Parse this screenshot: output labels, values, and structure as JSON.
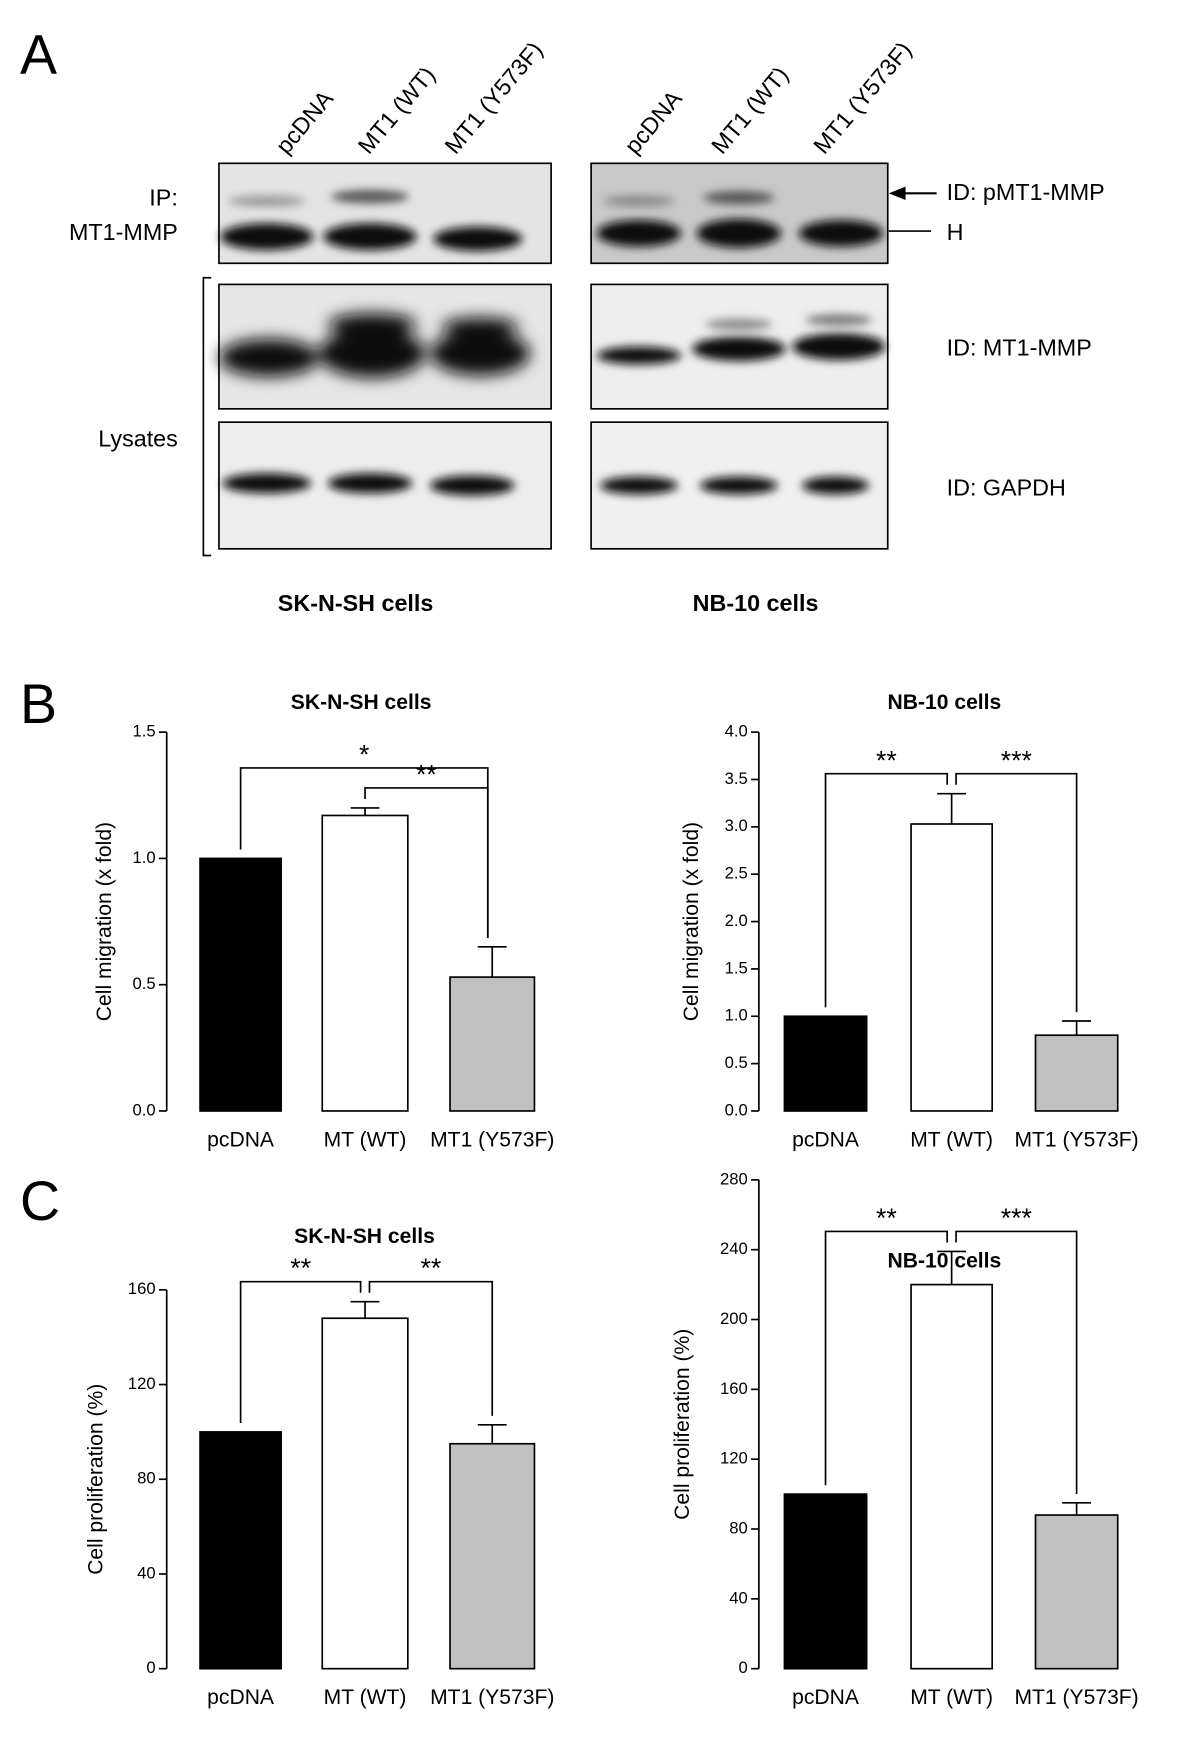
{
  "panel_labels": [
    "A",
    "B",
    "C"
  ],
  "blot": {
    "lanes": [
      "pcDNA",
      "MT1 (WT)",
      "MT1 (Y573F)"
    ],
    "ip_label": [
      "IP:",
      "MT1-MMP"
    ],
    "lysates_label": "Lysates",
    "right_labels": [
      "ID: pMT1-MMP",
      "H",
      "ID: MT1-MMP",
      "ID: GAPDH"
    ],
    "cell_lines": [
      "SK-N-SH cells",
      "NB-10 cells"
    ]
  },
  "chart_data": [
    {
      "type": "bar",
      "title": "SK-N-SH cells",
      "ylabel": "Cell migration (x fold)",
      "categories": [
        "pcDNA",
        "MT (WT)",
        "MT1 (Y573F)"
      ],
      "values": [
        1.0,
        1.17,
        0.53
      ],
      "errors": [
        null,
        0.03,
        0.12
      ],
      "colors": [
        "#000000",
        "#ffffff",
        "#c0c0c0"
      ],
      "ylim": [
        0,
        1.5
      ],
      "yticks": [
        {
          "value": 0,
          "label": "0.0"
        },
        0.5,
        {
          "value": 1,
          "label": "1.0"
        },
        1.5
      ],
      "annotations": [
        {
          "text": "*",
          "from": "pcDNA",
          "to": "MT1 (Y573F)"
        },
        {
          "text": "**",
          "from": "MT (WT)",
          "to": "MT1 (Y573F)"
        }
      ]
    },
    {
      "type": "bar",
      "title": "NB-10 cells",
      "ylabel": "Cell migration (x fold)",
      "categories": [
        "pcDNA",
        "MT (WT)",
        "MT1 (Y573F)"
      ],
      "values": [
        1.0,
        3.03,
        0.8
      ],
      "errors": [
        null,
        0.32,
        0.15
      ],
      "colors": [
        "#000000",
        "#ffffff",
        "#c0c0c0"
      ],
      "ylim": [
        0,
        4
      ],
      "yticks": [
        {
          "value": 0,
          "label": "0.0"
        },
        0.5,
        {
          "value": 1,
          "label": "1.0"
        },
        1.5,
        {
          "value": 2,
          "label": "2.0"
        },
        2.5,
        {
          "value": 3,
          "label": "3.0"
        },
        3.5,
        {
          "value": 4,
          "label": "4.0"
        }
      ],
      "annotations": [
        {
          "text": "**",
          "from": "pcDNA",
          "to": "MT (WT)"
        },
        {
          "text": "***",
          "from": "MT (WT)",
          "to": "MT1 (Y573F)"
        }
      ]
    },
    {
      "type": "bar",
      "title": "SK-N-SH cells",
      "ylabel": "Cell proliferation (%)",
      "categories": [
        "pcDNA",
        "MT (WT)",
        "MT1 (Y573F)"
      ],
      "values": [
        100,
        148,
        95
      ],
      "errors": [
        null,
        7,
        8
      ],
      "colors": [
        "#000000",
        "#ffffff",
        "#c0c0c0"
      ],
      "ylim": [
        0,
        160
      ],
      "yticks": [
        0,
        40,
        80,
        120,
        160
      ],
      "annotations": [
        {
          "text": "**",
          "from": "pcDNA",
          "to": "MT (WT)"
        },
        {
          "text": "**",
          "from": "MT (WT)",
          "to": "MT1 (Y573F)"
        }
      ]
    },
    {
      "type": "bar",
      "title": "NB-10 cells",
      "ylabel": "Cell proliferation (%)",
      "categories": [
        "pcDNA",
        "MT (WT)",
        "MT1 (Y573F)"
      ],
      "values": [
        100,
        220,
        88
      ],
      "errors": [
        null,
        19,
        7
      ],
      "colors": [
        "#000000",
        "#ffffff",
        "#c0c0c0"
      ],
      "ylim": [
        0,
        280
      ],
      "yticks": [
        0,
        40,
        80,
        120,
        160,
        200,
        240,
        280
      ],
      "annotations": [
        {
          "text": "**",
          "from": "pcDNA",
          "to": "MT (WT)"
        },
        {
          "text": "***",
          "from": "MT (WT)",
          "to": "MT1 (Y573F)"
        }
      ]
    }
  ]
}
